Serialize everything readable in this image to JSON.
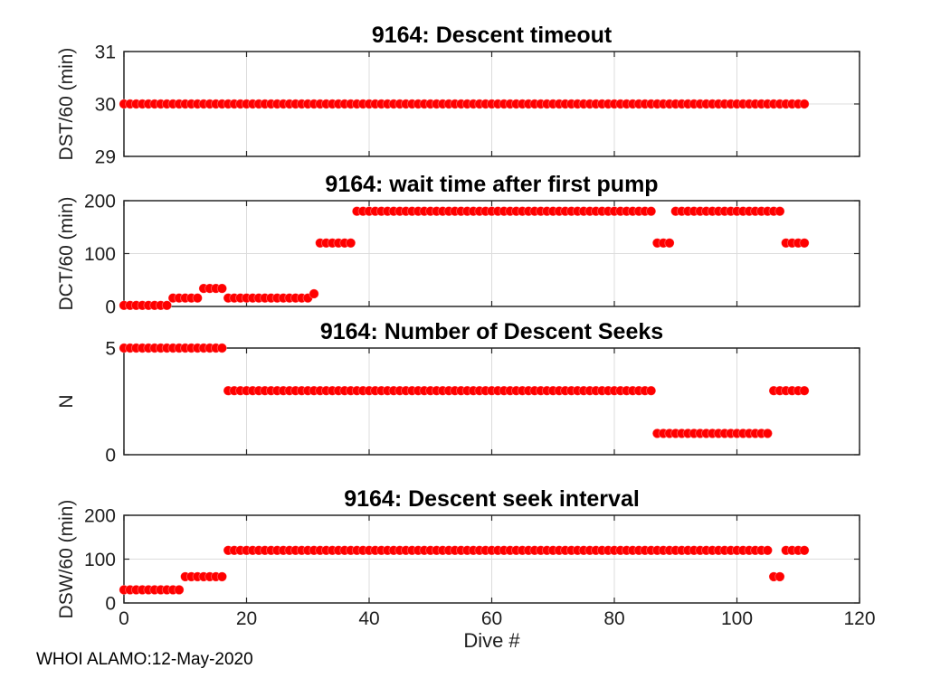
{
  "figure": {
    "footer": "WHOI ALAMO:12-May-2020",
    "background": "#ffffff",
    "marker_color": "#ff0000",
    "axis_color": "#262626",
    "grid_color": "#dcdcdc",
    "title_color": "#000000",
    "tick_label_color": "#1f1f1f"
  },
  "x_axis": {
    "label": "Dive #",
    "lim": [
      0,
      120
    ],
    "ticks": [
      0,
      20,
      40,
      60,
      80,
      100,
      120
    ]
  },
  "chart_data": [
    {
      "type": "scatter",
      "title": "9164: Descent timeout",
      "ylabel": "DST/60 (min)",
      "ylim": [
        29,
        31
      ],
      "yticks": [
        29,
        30,
        31
      ],
      "grid": true,
      "runs_format": "[first_dive, last_dive, value] — one red dot per integer dive",
      "series": [
        {
          "name": "DST/60",
          "runs": [
            [
              0,
              111,
              30
            ]
          ]
        }
      ]
    },
    {
      "type": "scatter",
      "title": "9164: wait time after first pump",
      "ylabel": "DCT/60 (min)",
      "ylim": [
        0,
        200
      ],
      "yticks": [
        0,
        100,
        200
      ],
      "grid": true,
      "runs_format": "[first_dive, last_dive, value] — one red dot per integer dive",
      "series": [
        {
          "name": "DCT/60",
          "runs": [
            [
              0,
              7,
              2
            ],
            [
              8,
              12,
              16
            ],
            [
              13,
              16,
              34
            ],
            [
              17,
              30,
              16
            ],
            [
              31,
              31,
              24
            ],
            [
              32,
              37,
              120
            ],
            [
              38,
              86,
              180
            ],
            [
              87,
              89,
              120
            ],
            [
              90,
              107,
              180
            ],
            [
              108,
              111,
              120
            ]
          ]
        }
      ]
    },
    {
      "type": "scatter",
      "title": "9164: Number of Descent Seeks",
      "ylabel": "N",
      "ylim": [
        0,
        5
      ],
      "yticks": [
        0,
        5
      ],
      "grid": true,
      "runs_format": "[first_dive, last_dive, value] — one red dot per integer dive",
      "series": [
        {
          "name": "N",
          "runs": [
            [
              0,
              16,
              5
            ],
            [
              17,
              86,
              3
            ],
            [
              87,
              105,
              1
            ],
            [
              106,
              111,
              3
            ]
          ]
        }
      ]
    },
    {
      "type": "scatter",
      "title": "9164: Descent seek interval",
      "ylabel": "DSW/60 (min)",
      "ylim": [
        0,
        200
      ],
      "yticks": [
        0,
        100,
        200
      ],
      "grid": true,
      "runs_format": "[first_dive, last_dive, value] — one red dot per integer dive",
      "series": [
        {
          "name": "DSW/60",
          "runs": [
            [
              0,
              9,
              30
            ],
            [
              10,
              16,
              60
            ],
            [
              17,
              105,
              120
            ],
            [
              106,
              107,
              60
            ],
            [
              108,
              111,
              120
            ]
          ]
        }
      ]
    }
  ]
}
